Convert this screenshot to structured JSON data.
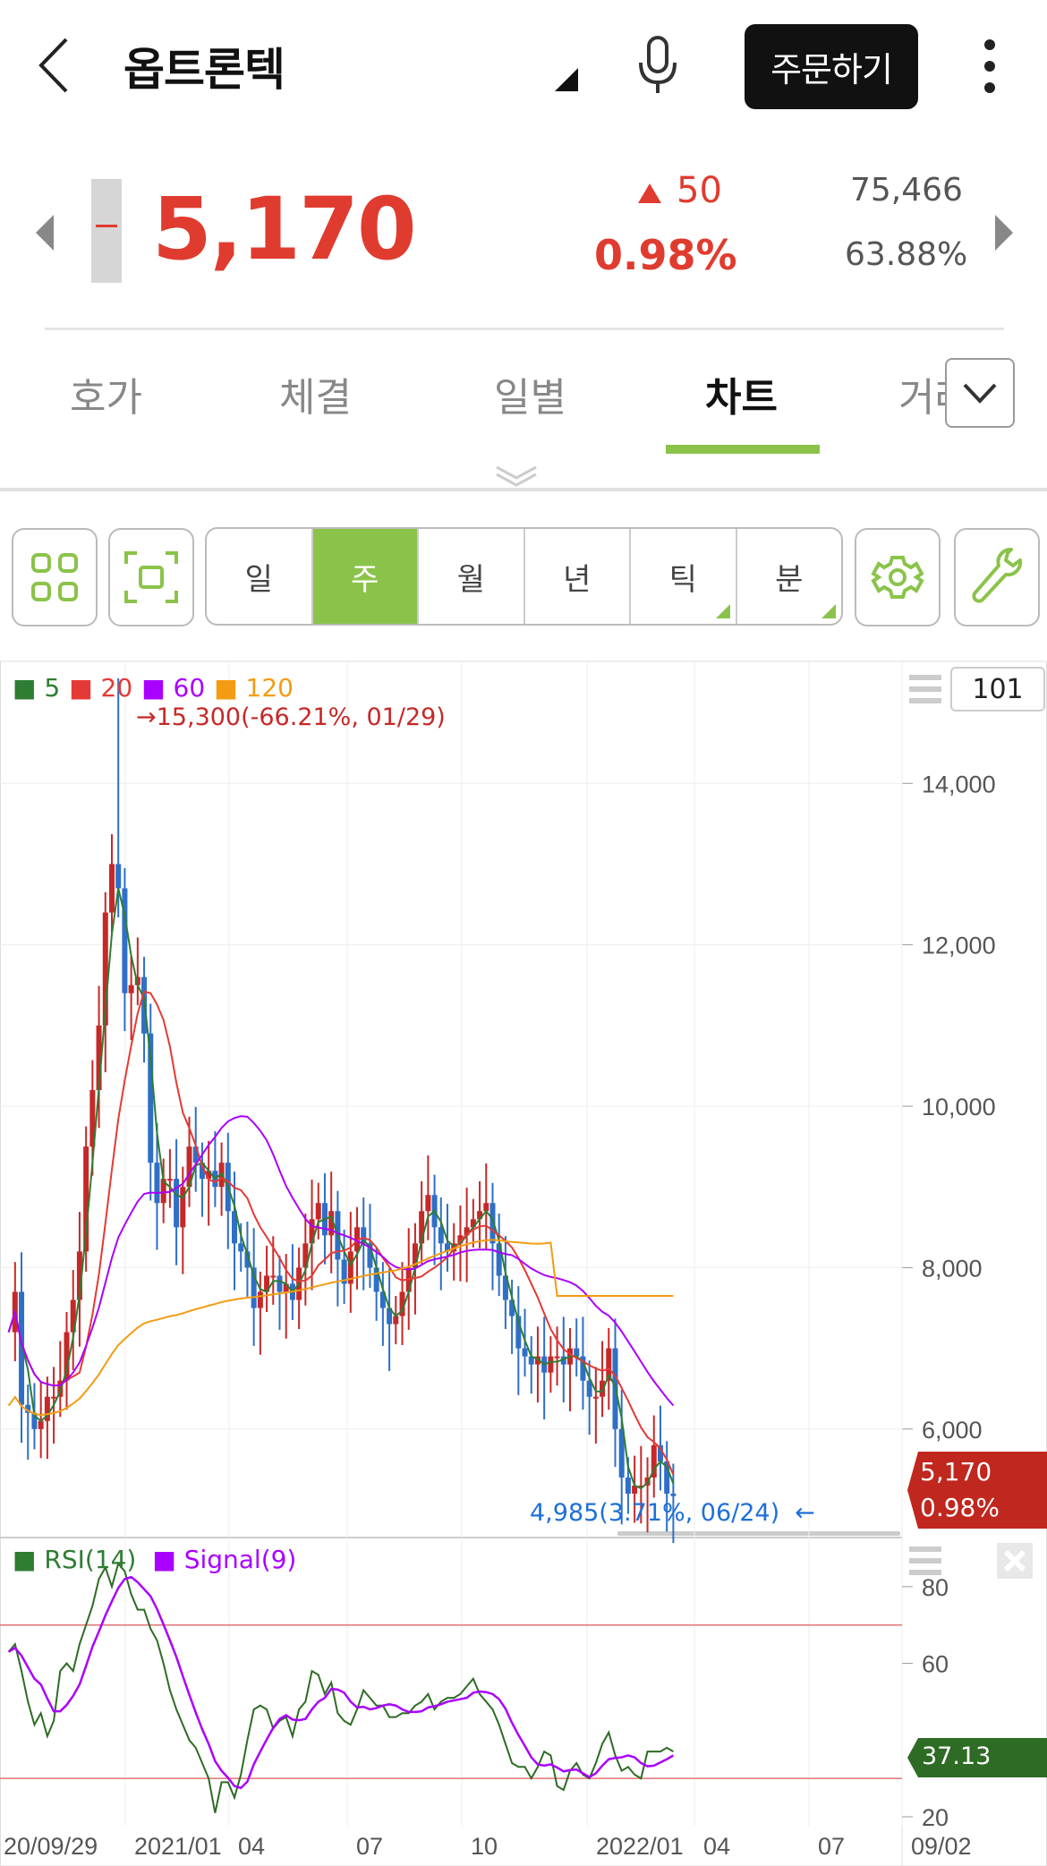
{
  "header": {
    "title": "옵트론텍",
    "order_label": "주문하기"
  },
  "quote": {
    "price": "5,170",
    "change": "50",
    "change_pct": "0.98%",
    "volume": "75,466",
    "ratio": "63.88%"
  },
  "tabs": [
    {
      "label": "호가"
    },
    {
      "label": "체결"
    },
    {
      "label": "일별"
    },
    {
      "label": "차트"
    },
    {
      "label": "거래"
    }
  ],
  "periods": [
    {
      "label": "일"
    },
    {
      "label": "주"
    },
    {
      "label": "월"
    },
    {
      "label": "년"
    },
    {
      "label": "틱"
    },
    {
      "label": "분"
    }
  ],
  "colors": {
    "up": "#e03b2f",
    "down": "#1e6fd9",
    "accent": "#8bc34a",
    "ma5": "#2e7d32",
    "ma20": "#e53935",
    "ma60": "#aa00ff",
    "ma120": "#f39c12"
  },
  "chart_data": {
    "type": "candlestick",
    "ma_legend": [
      "5",
      "20",
      "60",
      "120"
    ],
    "count_box": "101",
    "high_label": "15,300(-66.21%, 01/29)",
    "low_label": "4,985(3.71%, 06/24)",
    "last_price": "5,170",
    "last_pct": "0.98%",
    "ylim": [
      4800,
      15500
    ],
    "y_ticks": [
      "14,000",
      "12,000",
      "10,000",
      "8,000",
      "6,000"
    ],
    "x_ticks": [
      "20/09/29",
      "2021/01",
      "04",
      "07",
      "10",
      "2022/01",
      "04",
      "07",
      "09/02"
    ],
    "closes": [
      7200,
      7700,
      6300,
      6200,
      6000,
      6100,
      6400,
      6400,
      6600,
      7200,
      7600,
      8200,
      9500,
      10200,
      11000,
      12400,
      13000,
      12700,
      11400,
      11500,
      11600,
      10900,
      9300,
      8800,
      9100,
      9100,
      8500,
      9000,
      9500,
      9300,
      9100,
      9200,
      9000,
      9300,
      8700,
      8300,
      8200,
      8000,
      7500,
      7700,
      7900,
      7900,
      7700,
      7800,
      7600,
      8000,
      8300,
      8600,
      8800,
      8400,
      8700,
      8100,
      7800,
      8200,
      8500,
      8300,
      8000,
      7700,
      7500,
      7300,
      7400,
      7700,
      8000,
      8300,
      8700,
      8900,
      8500,
      8300,
      8200,
      8300,
      8400,
      8500,
      8600,
      8700,
      8800,
      8300,
      7900,
      7600,
      7400,
      7000,
      6900,
      6800,
      6900,
      6700,
      6900,
      6900,
      6800,
      7000,
      6900,
      6600,
      6400,
      6400,
      6600,
      7000,
      6000,
      5400,
      5200,
      5300,
      5300,
      5400,
      5800,
      5600,
      5200,
      5170
    ],
    "rsi": {
      "legend_rsi": "RSI(14)",
      "legend_signal": "Signal(9)",
      "value_label": "37.13",
      "ylim": [
        20,
        90
      ],
      "y_ticks": [
        "80",
        "60",
        "20"
      ],
      "bands": [
        70,
        30
      ],
      "values": [
        63,
        65,
        58,
        50,
        44,
        47,
        41,
        45,
        58,
        60,
        58,
        65,
        70,
        75,
        82,
        85,
        80,
        86,
        84,
        78,
        74,
        74,
        69,
        66,
        60,
        53,
        48,
        44,
        40,
        38,
        34,
        30,
        21,
        29,
        29,
        25,
        31,
        40,
        48,
        49,
        48,
        43,
        45,
        46,
        41,
        48,
        50,
        58,
        57,
        52,
        55,
        47,
        45,
        44,
        48,
        53,
        51,
        49,
        49,
        46,
        46,
        47,
        47,
        49,
        50,
        52,
        48,
        50,
        51,
        51,
        52,
        54,
        56,
        52,
        50,
        48,
        44,
        39,
        34,
        33,
        33,
        30,
        33,
        37,
        36,
        28,
        27,
        32,
        34,
        31,
        30,
        34,
        39,
        42,
        36,
        32,
        33,
        31,
        30,
        37,
        37,
        37,
        38,
        37
      ]
    }
  }
}
